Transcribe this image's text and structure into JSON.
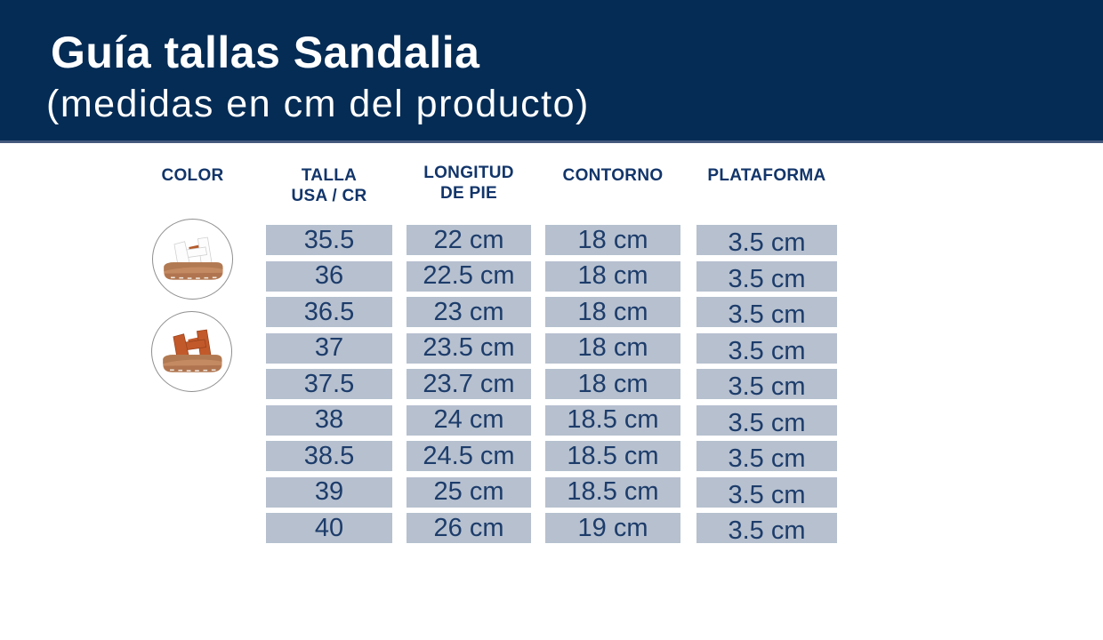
{
  "header": {
    "title": "Guía tallas Sandalia",
    "subtitle": "(medidas en cm del producto)",
    "background_color": "#052c55",
    "text_color": "#ffffff",
    "edge_line_color": "#44597c"
  },
  "table": {
    "columns": [
      {
        "id": "color",
        "label1": "COLOR",
        "label2": ""
      },
      {
        "id": "talla-usa-cr",
        "label1": "TALLA",
        "label2": "USA / CR"
      },
      {
        "id": "longitud-de-pie",
        "label1": "LONGITUD",
        "label2": "DE PIE"
      },
      {
        "id": "contorno",
        "label1": "CONTORNO",
        "label2": ""
      },
      {
        "id": "plataforma",
        "label1": "PLATAFORMA",
        "label2": ""
      }
    ],
    "rows": [
      [
        "35.5",
        "22 cm",
        "18 cm",
        "3.5 cm"
      ],
      [
        "36",
        "22.5 cm",
        "18 cm",
        "3.5 cm"
      ],
      [
        "36.5",
        "23 cm",
        "18 cm",
        "3.5 cm"
      ],
      [
        "37",
        "23.5 cm",
        "18 cm",
        "3.5 cm"
      ],
      [
        "37.5",
        "23.7 cm",
        "18 cm",
        "3.5 cm"
      ],
      [
        "38",
        "24 cm",
        "18.5 cm",
        "3.5 cm"
      ],
      [
        "38.5",
        "24.5 cm",
        "18.5 cm",
        "3.5 cm"
      ],
      [
        "39",
        "25 cm",
        "18.5 cm",
        "3.5 cm"
      ],
      [
        "40",
        "26 cm",
        "19 cm",
        "3.5 cm"
      ]
    ],
    "cell_background": "#b6c0cf",
    "header_text_color": "#12356a",
    "cell_text_color": "#1d3c6a"
  },
  "color_swatches": [
    {
      "name": "white-sandal",
      "strap_color": "#fdfdfd",
      "accent_color": "#b55a2b",
      "sole_color": "#c48a62"
    },
    {
      "name": "terracotta-sandal",
      "strap_color": "#c2592a",
      "accent_color": "#c2592a",
      "sole_color": "#c48a62"
    }
  ]
}
